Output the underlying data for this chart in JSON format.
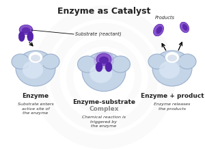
{
  "title": "Enzyme as Catalyst",
  "title_fontsize": 9,
  "bg_color": "#ffffff",
  "enzyme_fill": "#c5d5e8",
  "enzyme_fill_inner": "#dde8f5",
  "enzyme_edge": "#9aafcc",
  "substrate_dark": "#5522aa",
  "substrate_mid": "#8855cc",
  "substrate_light": "#aa88dd",
  "labels": {
    "enzyme1": "Enzyme",
    "enzyme2_line1": "Enzyme-substrate",
    "enzyme2_line2": "Complex",
    "enzyme3": "Enzyme + product",
    "substrate_label": "Substrate (reactant)",
    "products_label": "Products",
    "caption1": "Substrate enters\nactive site of\nthe enzyme",
    "caption2": "Chemical reaction is\ntriggered by\nthe enzyme",
    "caption3": "Enzyme releases\nthe products"
  }
}
